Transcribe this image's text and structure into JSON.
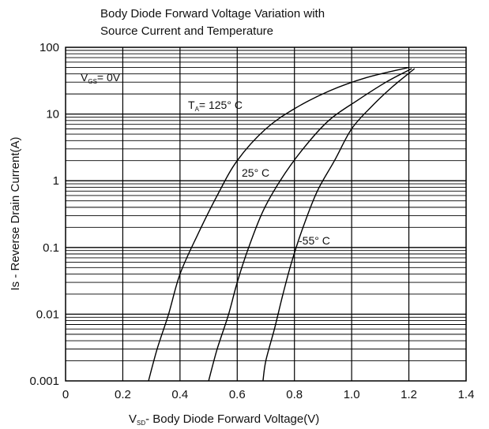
{
  "chart_data": {
    "type": "line",
    "title_lines": [
      "Body Diode Forward Voltage Variation with",
      "Source Current and Temperature"
    ],
    "xlabel": {
      "prefix": "V",
      "sub": "SD",
      "rest": "- Body Diode Forward Voltage(V)"
    },
    "ylabel": "Is - Reverse Drain Current(A)",
    "xlim": [
      0,
      1.4
    ],
    "ylim": [
      0.001,
      100
    ],
    "yscale": "log",
    "grid": true,
    "x_ticks": [
      0,
      0.2,
      0.4,
      0.6,
      0.8,
      1.0,
      1.2,
      1.4
    ],
    "x_tick_labels": [
      "0",
      "0.2",
      "0.4",
      "0.6",
      "0.8",
      "1.0",
      "1.2",
      "1.4"
    ],
    "y_ticks": [
      0.001,
      0.01,
      0.1,
      1,
      10,
      100
    ],
    "y_tick_labels": [
      "0.001",
      "0.01",
      "0.1",
      "1",
      "10",
      "100"
    ],
    "annotations": {
      "vgs": {
        "prefix": "V",
        "sub": "GS",
        "rest": "= 0V"
      },
      "ta": {
        "prefix": "T",
        "sub": "A",
        "rest": "= 125° C"
      },
      "t25": "25° C",
      "tm55": "-55° C"
    },
    "series": [
      {
        "x": [
          0.29,
          0.32,
          0.36,
          0.4,
          0.46,
          0.53,
          0.6,
          0.7,
          0.8,
          0.92,
          1.05,
          1.2
        ],
        "y": [
          0.001,
          0.003,
          0.01,
          0.04,
          0.15,
          0.6,
          2,
          6,
          12,
          22,
          35,
          50
        ]
      },
      {
        "x": [
          0.5,
          0.53,
          0.57,
          0.6,
          0.64,
          0.69,
          0.75,
          0.83,
          0.92,
          1.02,
          1.12,
          1.21
        ],
        "y": [
          0.001,
          0.003,
          0.01,
          0.03,
          0.1,
          0.35,
          1,
          3,
          8,
          16,
          30,
          48
        ]
      },
      {
        "x": [
          0.69,
          0.7,
          0.73,
          0.76,
          0.79,
          0.83,
          0.88,
          0.94,
          1.0,
          1.07,
          1.14,
          1.22
        ],
        "y": [
          0.001,
          0.002,
          0.006,
          0.02,
          0.06,
          0.2,
          0.7,
          2,
          6,
          13,
          25,
          48
        ]
      }
    ]
  }
}
